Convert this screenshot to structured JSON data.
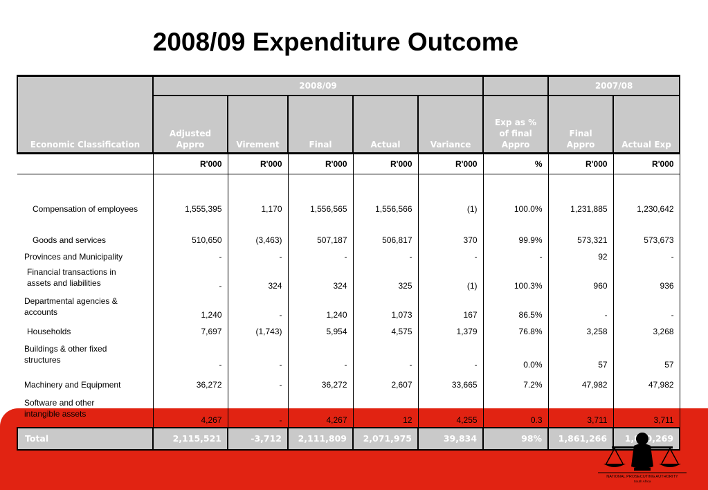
{
  "title": "2008/09 Expenditure Outcome",
  "table": {
    "period_left": "2008/09",
    "period_right": "2007/08",
    "headers": {
      "classification": "Economic Classification",
      "adjusted_appro": [
        "Adjusted",
        "Appro"
      ],
      "virement": "Virement",
      "final": "Final",
      "actual": "Actual",
      "variance": "Variance",
      "exp_pct": [
        "Exp as %",
        "of final",
        "Appro"
      ],
      "final_appro": [
        "Final",
        "Appro"
      ],
      "actual_exp": "Actual Exp"
    },
    "units": [
      "R'000",
      "R'000",
      "R'000",
      "R'000",
      "R'000",
      "%",
      "R'000",
      "R'000"
    ],
    "rows": [
      {
        "label": [
          "Compensation of employees"
        ],
        "values": [
          "1,555,395",
          "1,170",
          "1,556,565",
          "1,556,566",
          "(1)",
          "100.0%",
          "1,231,885",
          "1,230,642"
        ]
      },
      {
        "label": [
          "Goods and services"
        ],
        "values": [
          "510,650",
          "(3,463)",
          "507,187",
          "506,817",
          "370",
          "99.9%",
          "573,321",
          "573,673"
        ]
      },
      {
        "label": [
          "Provinces and Municipality"
        ],
        "values": [
          "-",
          "-",
          "-",
          "-",
          "-",
          "-",
          "92",
          "-"
        ]
      },
      {
        "label": [
          "Financial transactions in",
          "assets and liabilities"
        ],
        "values": [
          "-",
          "324",
          "324",
          "325",
          "(1)",
          "100.3%",
          "960",
          "936"
        ]
      },
      {
        "label": [
          "Departmental agencies  &",
          "accounts"
        ],
        "values": [
          "1,240",
          "-",
          "1,240",
          "1,073",
          "167",
          "86.5%",
          "-",
          "-"
        ]
      },
      {
        "label": [
          "Households"
        ],
        "values": [
          "7,697",
          "(1,743)",
          "5,954",
          "4,575",
          "1,379",
          "76.8%",
          "3,258",
          "3,268"
        ]
      },
      {
        "label": [
          "Buildings & other fixed",
          "structures"
        ],
        "values": [
          "-",
          "-",
          "-",
          "-",
          "-",
          "0.0%",
          "57",
          "57"
        ]
      },
      {
        "label": [
          "Machinery and Equipment"
        ],
        "values": [
          "36,272",
          "-",
          "36,272",
          "2,607",
          "33,665",
          "7.2%",
          "47,982",
          "47,982"
        ]
      },
      {
        "label": [
          "Software and other",
          "intangible assets"
        ],
        "values": [
          "4,267",
          "-",
          "4,267",
          "12",
          "4,255",
          "0.3",
          "3,711",
          "3,711"
        ]
      }
    ],
    "total": {
      "label": "Total",
      "values": [
        "2,115,521",
        "-3,712",
        "2,111,809",
        "2,071,975",
        "39,834",
        "98%",
        "1,861,266",
        "1,860,269"
      ]
    }
  },
  "logo": {
    "text_line1": "NATIONAL PROSECUTING AUTHORITY",
    "text_line2": "South Africa",
    "icon": "scales-of-justice-icon"
  },
  "colors": {
    "accent_red": "#e12312",
    "header_grey": "#c9c9c9"
  }
}
